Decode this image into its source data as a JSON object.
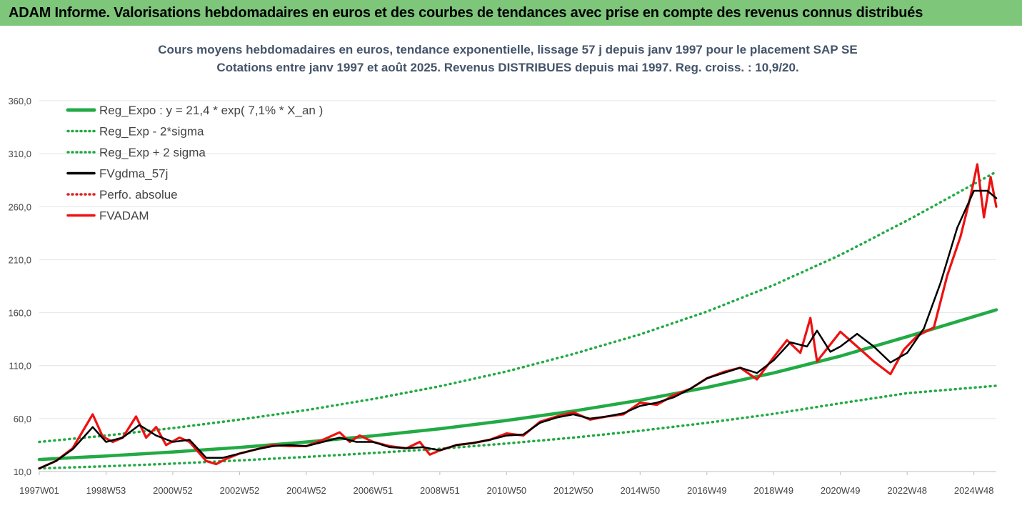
{
  "banner": {
    "title": "ADAM Informe. Valorisations hebdomadaires en euros et des courbes de tendances avec prise en compte des revenus connus distribués"
  },
  "chart_data": {
    "type": "line",
    "title": "Cours moyens hebdomadaires en euros, tendance exponentielle, lissage 57 j depuis janv 1997 pour le placement SAP SE",
    "subtitle": "Cotations entre janv 1997 et août 2025.  Revenus DISTRIBUES depuis mai 1997. Reg. croiss. : 10,9/20.",
    "ylim": [
      10,
      360
    ],
    "yticks": [
      "10,0",
      "60,0",
      "110,0",
      "160,0",
      "210,0",
      "260,0",
      "310,0",
      "360,0"
    ],
    "xlim": [
      1997.0,
      2025.67
    ],
    "xticks": [
      {
        "label": "1997W01",
        "x": 1997.0
      },
      {
        "label": "1998W53",
        "x": 1999.0
      },
      {
        "label": "2000W52",
        "x": 2001.0
      },
      {
        "label": "2002W52",
        "x": 2003.0
      },
      {
        "label": "2004W52",
        "x": 2005.0
      },
      {
        "label": "2006W51",
        "x": 2007.0
      },
      {
        "label": "2008W51",
        "x": 2009.0
      },
      {
        "label": "2010W50",
        "x": 2011.0
      },
      {
        "label": "2012W50",
        "x": 2013.0
      },
      {
        "label": "2014W50",
        "x": 2015.0
      },
      {
        "label": "2016W49",
        "x": 2017.0
      },
      {
        "label": "2018W49",
        "x": 2019.0
      },
      {
        "label": "2020W49",
        "x": 2021.0
      },
      {
        "label": "2022W48",
        "x": 2023.0
      },
      {
        "label": "2024W48",
        "x": 2025.0
      }
    ],
    "legend_position": "top-left",
    "series": [
      {
        "name": "Reg_Expo : y = 21,4 * exp( 7,1% *  X_an )",
        "color": "#22aa44",
        "style": "solid",
        "x": [
          1997,
          1999,
          2001,
          2003,
          2005,
          2007,
          2009,
          2011,
          2013,
          2015,
          2017,
          2019,
          2021,
          2023,
          2025.67
        ],
        "y": [
          21.4,
          24.7,
          28.5,
          32.8,
          37.9,
          43.7,
          50.4,
          58.2,
          67.1,
          77.4,
          89.4,
          103.1,
          119.0,
          137.3,
          162.7
        ]
      },
      {
        "name": "Reg_Exp - 2*sigma",
        "color": "#22aa44",
        "style": "dotted",
        "x": [
          1997,
          1999,
          2001,
          2003,
          2005,
          2007,
          2009,
          2011,
          2013,
          2015,
          2017,
          2019,
          2021,
          2023,
          2025.67
        ],
        "y": [
          13,
          15,
          17.5,
          20.5,
          23.8,
          27.5,
          31.5,
          36.5,
          42,
          48.5,
          56,
          64.5,
          74.5,
          84,
          91
        ]
      },
      {
        "name": "Reg_Exp + 2 sigma",
        "color": "#22aa44",
        "style": "dotted",
        "x": [
          1997,
          1999,
          2001,
          2003,
          2005,
          2007,
          2009,
          2011,
          2013,
          2015,
          2017,
          2019,
          2021,
          2023,
          2025.67
        ],
        "y": [
          38,
          44,
          51,
          59,
          68,
          78.5,
          90.5,
          104.5,
          121,
          139.5,
          161,
          186,
          214.5,
          247,
          293
        ]
      },
      {
        "name": "FVgdma_57j",
        "color": "#000000",
        "style": "solid",
        "x": [
          1997,
          1997.5,
          1998,
          1998.6,
          1999,
          1999.5,
          2000,
          2000.5,
          2001,
          2001.5,
          2002,
          2002.5,
          2003,
          2003.5,
          2004,
          2004.5,
          2005,
          2005.5,
          2006,
          2006.5,
          2007,
          2007.5,
          2008,
          2008.5,
          2009,
          2009.5,
          2010,
          2010.5,
          2011,
          2011.5,
          2012,
          2012.5,
          2013,
          2013.5,
          2014,
          2014.5,
          2015,
          2015.5,
          2016,
          2016.5,
          2017,
          2017.5,
          2018,
          2018.5,
          2019,
          2019.5,
          2020,
          2020.3,
          2020.7,
          2021,
          2021.5,
          2022,
          2022.5,
          2023,
          2023.5,
          2024,
          2024.5,
          2025,
          2025.4,
          2025.67
        ],
        "y": [
          13,
          20,
          31,
          52,
          38,
          42,
          54,
          44,
          38,
          40,
          23,
          23,
          27,
          31,
          34,
          35,
          34,
          38,
          42,
          38,
          38,
          33,
          32,
          33,
          30,
          35,
          37,
          40,
          44,
          45,
          56,
          61,
          64,
          60,
          62,
          65,
          72,
          75,
          80,
          88,
          98,
          103,
          108,
          103,
          115,
          132,
          128,
          143,
          123,
          128,
          140,
          128,
          113,
          122,
          145,
          188,
          240,
          275,
          275,
          268
        ]
      },
      {
        "name": "Perfo. absolue",
        "color": "#dd2222",
        "style": "dotted",
        "x": [],
        "y": []
      },
      {
        "name": "FVADAM",
        "color": "#ee1111",
        "style": "solid",
        "x": [
          1997,
          1997.5,
          1998,
          1998.6,
          1998.9,
          1999.2,
          1999.5,
          1999.9,
          2000.2,
          2000.5,
          2000.8,
          2001.2,
          2001.5,
          2002,
          2002.3,
          2002.6,
          2003,
          2003.5,
          2004,
          2004.5,
          2005,
          2005.5,
          2006,
          2006.3,
          2006.6,
          2007,
          2007.5,
          2008,
          2008.4,
          2008.7,
          2009,
          2009.5,
          2010,
          2010.5,
          2011,
          2011.5,
          2012,
          2012.5,
          2013,
          2013.5,
          2014,
          2014.5,
          2015,
          2015.5,
          2016,
          2016.5,
          2017,
          2017.5,
          2018,
          2018.5,
          2019,
          2019.4,
          2019.8,
          2020.1,
          2020.3,
          2020.6,
          2021,
          2021.5,
          2022,
          2022.5,
          2022.9,
          2023.3,
          2023.8,
          2024.2,
          2024.6,
          2024.9,
          2025.1,
          2025.3,
          2025.5,
          2025.67
        ],
        "y": [
          13,
          20,
          32,
          64,
          43,
          38,
          42,
          62,
          42,
          52,
          35,
          42,
          38,
          20,
          17,
          22,
          27,
          31,
          35,
          34,
          34,
          40,
          47,
          38,
          44,
          38,
          34,
          32,
          38,
          26,
          30,
          35,
          37,
          40,
          46,
          44,
          57,
          62,
          66,
          59,
          62,
          64,
          75,
          73,
          82,
          88,
          98,
          104,
          108,
          97,
          118,
          134,
          122,
          155,
          114,
          126,
          142,
          128,
          114,
          102,
          125,
          138,
          146,
          195,
          232,
          270,
          300,
          250,
          288,
          260
        ]
      }
    ]
  }
}
